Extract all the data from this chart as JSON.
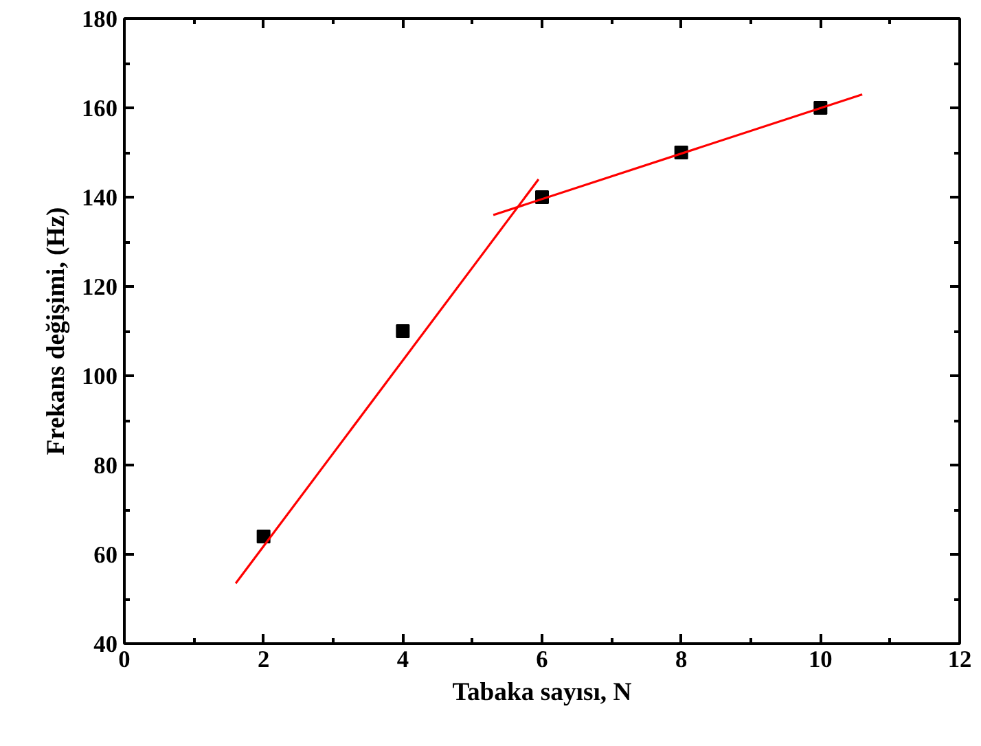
{
  "chart_data": {
    "type": "scatter",
    "xlabel": "Tabaka sayısı, N",
    "ylabel": "Frekans değişimi, (Hz)",
    "xlim": [
      0,
      12
    ],
    "ylim": [
      40,
      180
    ],
    "xticks": [
      0,
      {
        "value": 1,
        "label": null
      },
      2,
      {
        "value": 3,
        "label": null
      },
      4,
      {
        "value": 5,
        "label": null
      },
      6,
      {
        "value": 7,
        "label": null
      },
      8,
      {
        "value": 9,
        "label": null
      },
      10,
      {
        "value": 11,
        "label": null
      },
      12
    ],
    "yticks": [
      40,
      {
        "value": 50,
        "label": null
      },
      60,
      {
        "value": 70,
        "label": null
      },
      80,
      {
        "value": 90,
        "label": null
      },
      100,
      {
        "value": 110,
        "label": null
      },
      120,
      {
        "value": 130,
        "label": null
      },
      140,
      {
        "value": 150,
        "label": null
      },
      160,
      {
        "value": 170,
        "label": null
      },
      180
    ],
    "grid": false,
    "marker": "square",
    "series": [
      {
        "color": "#000000",
        "x": [
          2,
          4,
          6,
          8,
          10
        ],
        "values": [
          64,
          110,
          140,
          150,
          160
        ]
      },
      {
        "type": "line",
        "color": "#ff0000",
        "line_style": "solid",
        "marker": "none",
        "x": [
          1.6,
          5.95
        ],
        "values": [
          53.5,
          144
        ]
      },
      {
        "type": "line",
        "color": "#ff0000",
        "line_style": "solid",
        "marker": "none",
        "x": [
          5.3,
          10.6
        ],
        "values": [
          136,
          163
        ]
      }
    ]
  }
}
